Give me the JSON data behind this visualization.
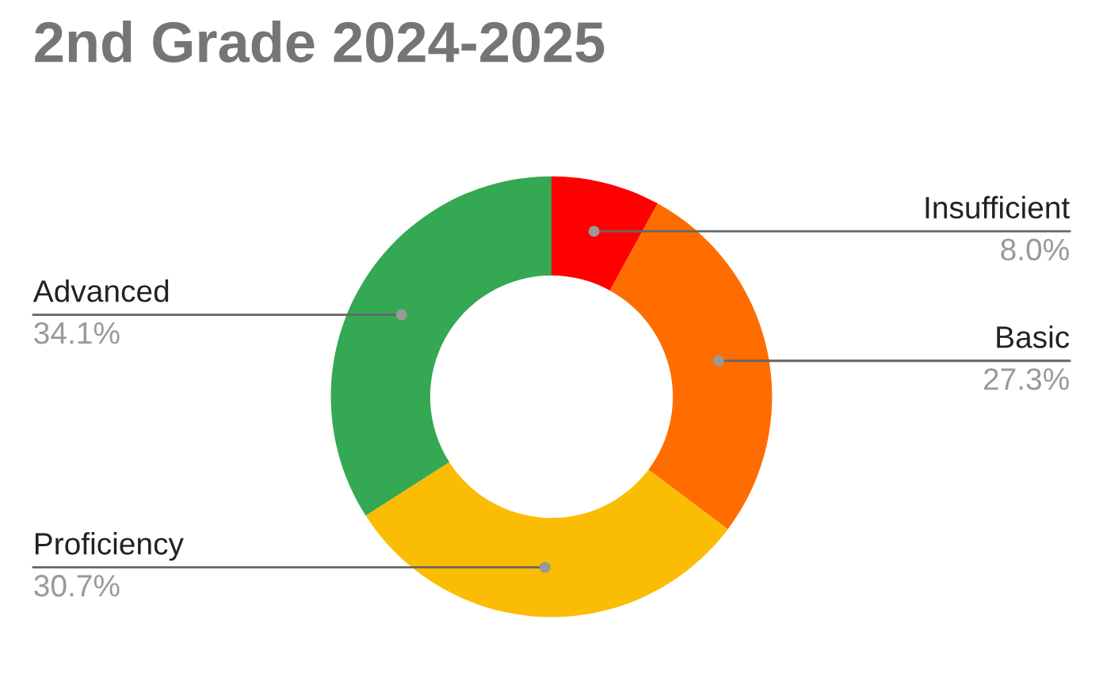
{
  "chart_data": {
    "type": "donut",
    "title": "2nd Grade 2024-2025",
    "categories": [
      "Insufficient",
      "Basic",
      "Proficiency",
      "Advanced"
    ],
    "values": [
      8.0,
      27.3,
      30.7,
      34.1
    ],
    "value_labels": [
      "8.0%",
      "27.3%",
      "30.7%",
      "34.1%"
    ],
    "colors": [
      "#ff0000",
      "#ff6d01",
      "#fbbc04",
      "#34a853"
    ],
    "legend": false
  }
}
